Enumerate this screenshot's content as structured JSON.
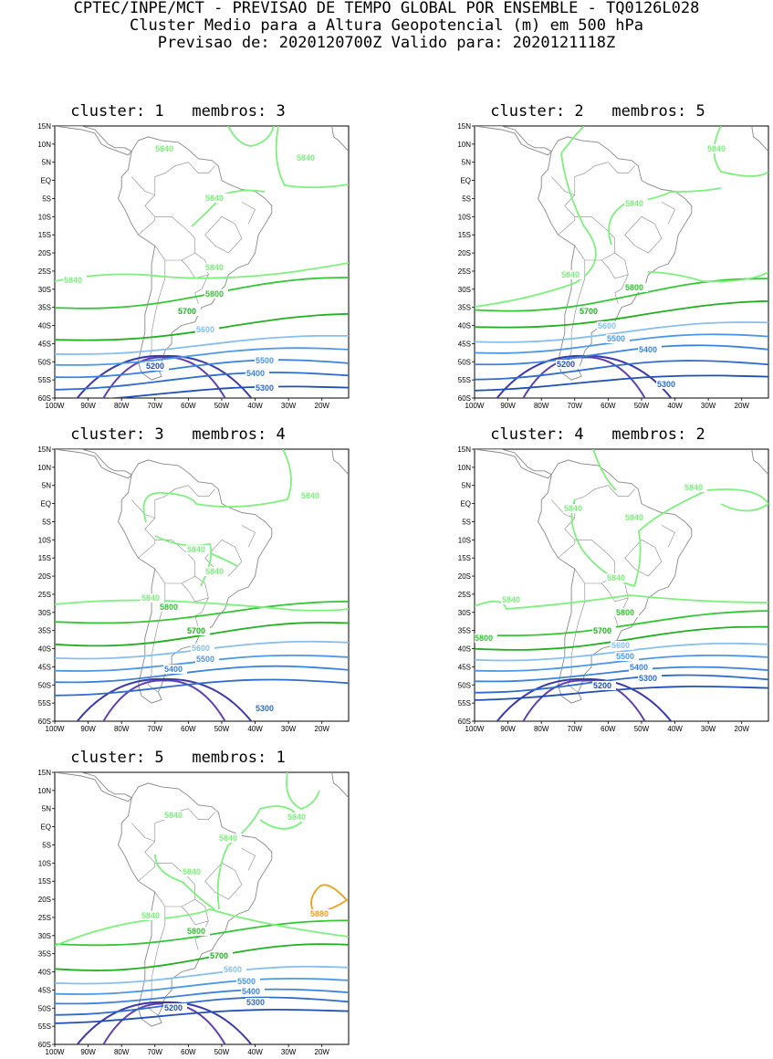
{
  "header": {
    "line1": "CPTEC/INPE/MCT - PREVISAO DE TEMPO GLOBAL POR ENSEMBLE - TQ0126L028",
    "line2": "Cluster Medio para a Altura Geopotencial (m) em 500 hPa",
    "line3": "Previsao de: 2020120700Z   Valido para: 2020121118Z"
  },
  "axes": {
    "lat_labels": [
      "15N",
      "10N",
      "5N",
      "EQ",
      "5S",
      "10S",
      "15S",
      "20S",
      "25S",
      "30S",
      "35S",
      "40S",
      "45S",
      "50S",
      "55S",
      "60S"
    ],
    "lon_labels": [
      "100W",
      "90W",
      "80W",
      "70W",
      "60W",
      "50W",
      "40W",
      "30W",
      "20W"
    ]
  },
  "colors": {
    "5200": "#1f4fb4",
    "5300": "#2f6ccb",
    "5400": "#3c82dc",
    "5500": "#4d98e6",
    "5600": "#86bff0",
    "5700": "#22b022",
    "5800": "#35c635",
    "5840": "#7df07d",
    "5880": "#f0a020",
    "low1": "#6040b0",
    "low2": "#3b3ba8",
    "coast": "#888888"
  },
  "panels": [
    {
      "cluster": "1",
      "membros": "3",
      "title": "cluster: 1   membros: 3",
      "labels": [
        "5840",
        "5840",
        "5840",
        "5840",
        "5840",
        "5800",
        "5700",
        "5600",
        "5500",
        "5400",
        "5300",
        "5200"
      ]
    },
    {
      "cluster": "2",
      "membros": "5",
      "title": "cluster: 2   membros: 5",
      "labels": [
        "5840",
        "5840",
        "5840",
        "5800",
        "5700",
        "5600",
        "5500",
        "5400",
        "5300",
        "5200"
      ]
    },
    {
      "cluster": "3",
      "membros": "4",
      "title": "cluster: 3   membros: 4",
      "labels": [
        "5840",
        "5840",
        "5840",
        "5840",
        "5800",
        "5700",
        "5600",
        "5500",
        "5400",
        "5300"
      ]
    },
    {
      "cluster": "4",
      "membros": "2",
      "title": "cluster: 4   membros: 2",
      "labels": [
        "5840",
        "5840",
        "5840",
        "5840",
        "5840",
        "5800",
        "5700",
        "5600",
        "5500",
        "5400",
        "5300",
        "5200",
        "5800"
      ]
    },
    {
      "cluster": "5",
      "membros": "1",
      "title": "cluster: 5   membros: 1",
      "labels": [
        "5840",
        "5840",
        "5840",
        "5840",
        "5880",
        "5840",
        "5800",
        "5700",
        "5600",
        "5500",
        "5400",
        "5300",
        "5200"
      ]
    }
  ]
}
